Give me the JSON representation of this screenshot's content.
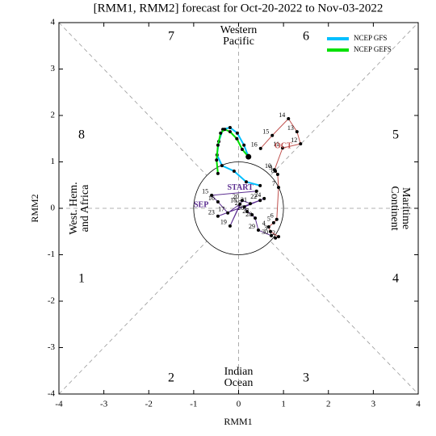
{
  "chart_data": {
    "type": "line",
    "title": "[RMM1, RMM2] forecast for Oct-20-2022 to Nov-03-2022",
    "x_label": "RMM1",
    "y_label": "RMM2",
    "xlim": [
      -4,
      4
    ],
    "ylim": [
      -4,
      4
    ],
    "xticks": [
      -4,
      -3,
      -2,
      -1,
      0,
      1,
      2,
      3,
      4
    ],
    "yticks": [
      -4,
      -3,
      -2,
      -1,
      0,
      1,
      2,
      3,
      4
    ],
    "phases": [
      "1",
      "2",
      "3",
      "4",
      "5",
      "6",
      "7",
      "8"
    ],
    "regions": {
      "top": [
        "Western",
        "Pacific"
      ],
      "right": [
        "Maritime",
        "Continent"
      ],
      "bottom": [
        "Indian",
        "Ocean"
      ],
      "left": [
        "West. Hem.",
        "and Africa"
      ]
    },
    "observed": [
      {
        "name": "SEP",
        "color": "#5b2d90",
        "x": [
          0.4,
          -0.6,
          -0.46,
          -0.24,
          0.03,
          -0.19,
          0.08,
          0.26,
          0.48,
          -0.46,
          0.57,
          0.13,
          0.19,
          0.3,
          0.37,
          0.44,
          0.73
        ],
        "y": [
          0.37,
          0.28,
          0.14,
          -0.1,
          0.09,
          -0.38,
          0.17,
          0.1,
          0.17,
          -0.17,
          0.21,
          0.03,
          -0.07,
          -0.14,
          -0.21,
          -0.47,
          -0.59
        ],
        "labels": [
          "START",
          "15",
          "16",
          "17",
          "18",
          "19",
          "20",
          "21",
          "22",
          "23",
          "24",
          "25",
          "26",
          "27",
          "28",
          "29",
          "30"
        ]
      },
      {
        "name": "OCT",
        "color": "#c0504d",
        "x": [
          0.82,
          0.89,
          0.71,
          0.67,
          0.78,
          0.85,
          0.89,
          0.87,
          0.82,
          0.8,
          0.98,
          1.38,
          1.3,
          1.11,
          0.75,
          0.49
        ],
        "y": [
          -0.64,
          -0.61,
          -0.5,
          -0.4,
          -0.31,
          -0.24,
          0.45,
          0.73,
          0.8,
          0.83,
          1.3,
          1.39,
          1.65,
          1.93,
          1.57,
          1.29
        ],
        "labels": [
          "1",
          "2",
          "3",
          "4",
          "5",
          "6",
          "7",
          "8",
          "9",
          "10",
          "11",
          "12",
          "13",
          "14",
          "15",
          "16"
        ]
      }
    ],
    "series": [
      {
        "name": "NCEP GFS",
        "color": "#00bfff",
        "x": [
          0.22,
          0.12,
          -0.03,
          -0.19,
          -0.35,
          -0.44,
          -0.48,
          -0.37,
          -0.1,
          0.17,
          0.48
        ],
        "y": [
          1.11,
          1.36,
          1.62,
          1.74,
          1.7,
          1.44,
          1.15,
          0.92,
          0.8,
          0.57,
          0.49
        ]
      },
      {
        "name": "NCEP GEFS",
        "color": "#00e000",
        "x": [
          0.22,
          0.08,
          -0.04,
          -0.19,
          -0.31,
          -0.4,
          -0.46,
          -0.49,
          -0.46
        ],
        "y": [
          1.11,
          1.27,
          1.5,
          1.65,
          1.7,
          1.62,
          1.36,
          1.04,
          0.75
        ]
      }
    ],
    "legend": "upper right"
  }
}
